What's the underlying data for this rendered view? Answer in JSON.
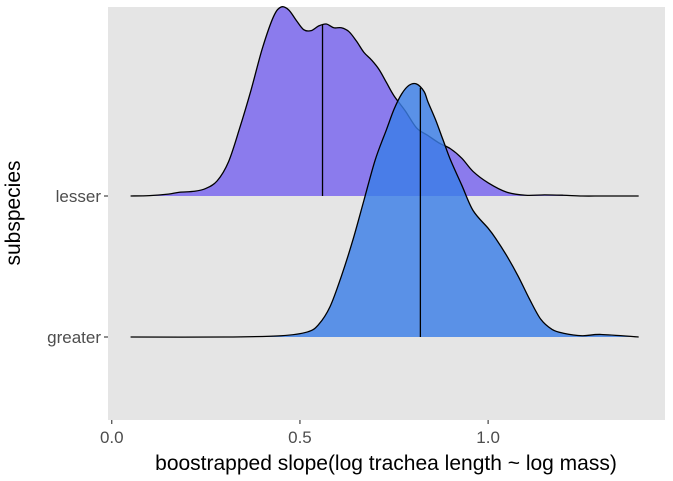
{
  "chart_data": {
    "type": "ridgeline-density",
    "title": "",
    "xlabel": "boostrapped slope(log trachea length ~ log mass)",
    "ylabel": "subspecies",
    "xlim": [
      -0.01,
      1.47
    ],
    "x_ticks": [
      0.0,
      0.5,
      1.0
    ],
    "x_tick_labels": [
      "0.0",
      "0.5",
      "1.0"
    ],
    "categories": [
      "greater",
      "lesser"
    ],
    "grid": false,
    "panel_background": "#e5e5e5",
    "series": [
      {
        "name": "lesser",
        "color": "#7b68ee",
        "fill_opacity": 0.85,
        "median": 0.56,
        "x": [
          0.05,
          0.1,
          0.15,
          0.18,
          0.22,
          0.25,
          0.28,
          0.31,
          0.34,
          0.37,
          0.4,
          0.43,
          0.45,
          0.47,
          0.49,
          0.51,
          0.53,
          0.55,
          0.57,
          0.59,
          0.61,
          0.63,
          0.65,
          0.67,
          0.69,
          0.71,
          0.73,
          0.75,
          0.78,
          0.81,
          0.84,
          0.87,
          0.9,
          0.93,
          0.96,
          1.0,
          1.05,
          1.1,
          1.15,
          1.2,
          1.25,
          1.3,
          1.35,
          1.4
        ],
        "density": [
          0.0,
          0.002,
          0.01,
          0.02,
          0.025,
          0.04,
          0.08,
          0.18,
          0.36,
          0.56,
          0.78,
          0.95,
          1.0,
          0.985,
          0.93,
          0.88,
          0.875,
          0.9,
          0.91,
          0.89,
          0.89,
          0.87,
          0.82,
          0.76,
          0.72,
          0.67,
          0.6,
          0.53,
          0.45,
          0.36,
          0.32,
          0.28,
          0.25,
          0.2,
          0.13,
          0.07,
          0.02,
          0.004,
          0.006,
          0.004,
          0.0,
          0.0,
          0.0,
          0.0
        ]
      },
      {
        "name": "greater",
        "color": "#3b7ee6",
        "fill_opacity": 0.82,
        "median": 0.82,
        "x": [
          0.05,
          0.3,
          0.45,
          0.52,
          0.55,
          0.58,
          0.61,
          0.64,
          0.67,
          0.7,
          0.73,
          0.75,
          0.77,
          0.79,
          0.81,
          0.83,
          0.84,
          0.86,
          0.88,
          0.9,
          0.93,
          0.96,
          1.0,
          1.02,
          1.05,
          1.08,
          1.11,
          1.14,
          1.17,
          1.2,
          1.25,
          1.3,
          1.4
        ],
        "density": [
          0.0,
          0.0,
          0.005,
          0.02,
          0.05,
          0.12,
          0.24,
          0.38,
          0.54,
          0.7,
          0.82,
          0.9,
          0.96,
          0.995,
          1.0,
          0.97,
          0.93,
          0.86,
          0.78,
          0.7,
          0.6,
          0.5,
          0.43,
          0.39,
          0.32,
          0.24,
          0.15,
          0.07,
          0.03,
          0.015,
          0.005,
          0.01,
          0.0
        ]
      }
    ]
  }
}
